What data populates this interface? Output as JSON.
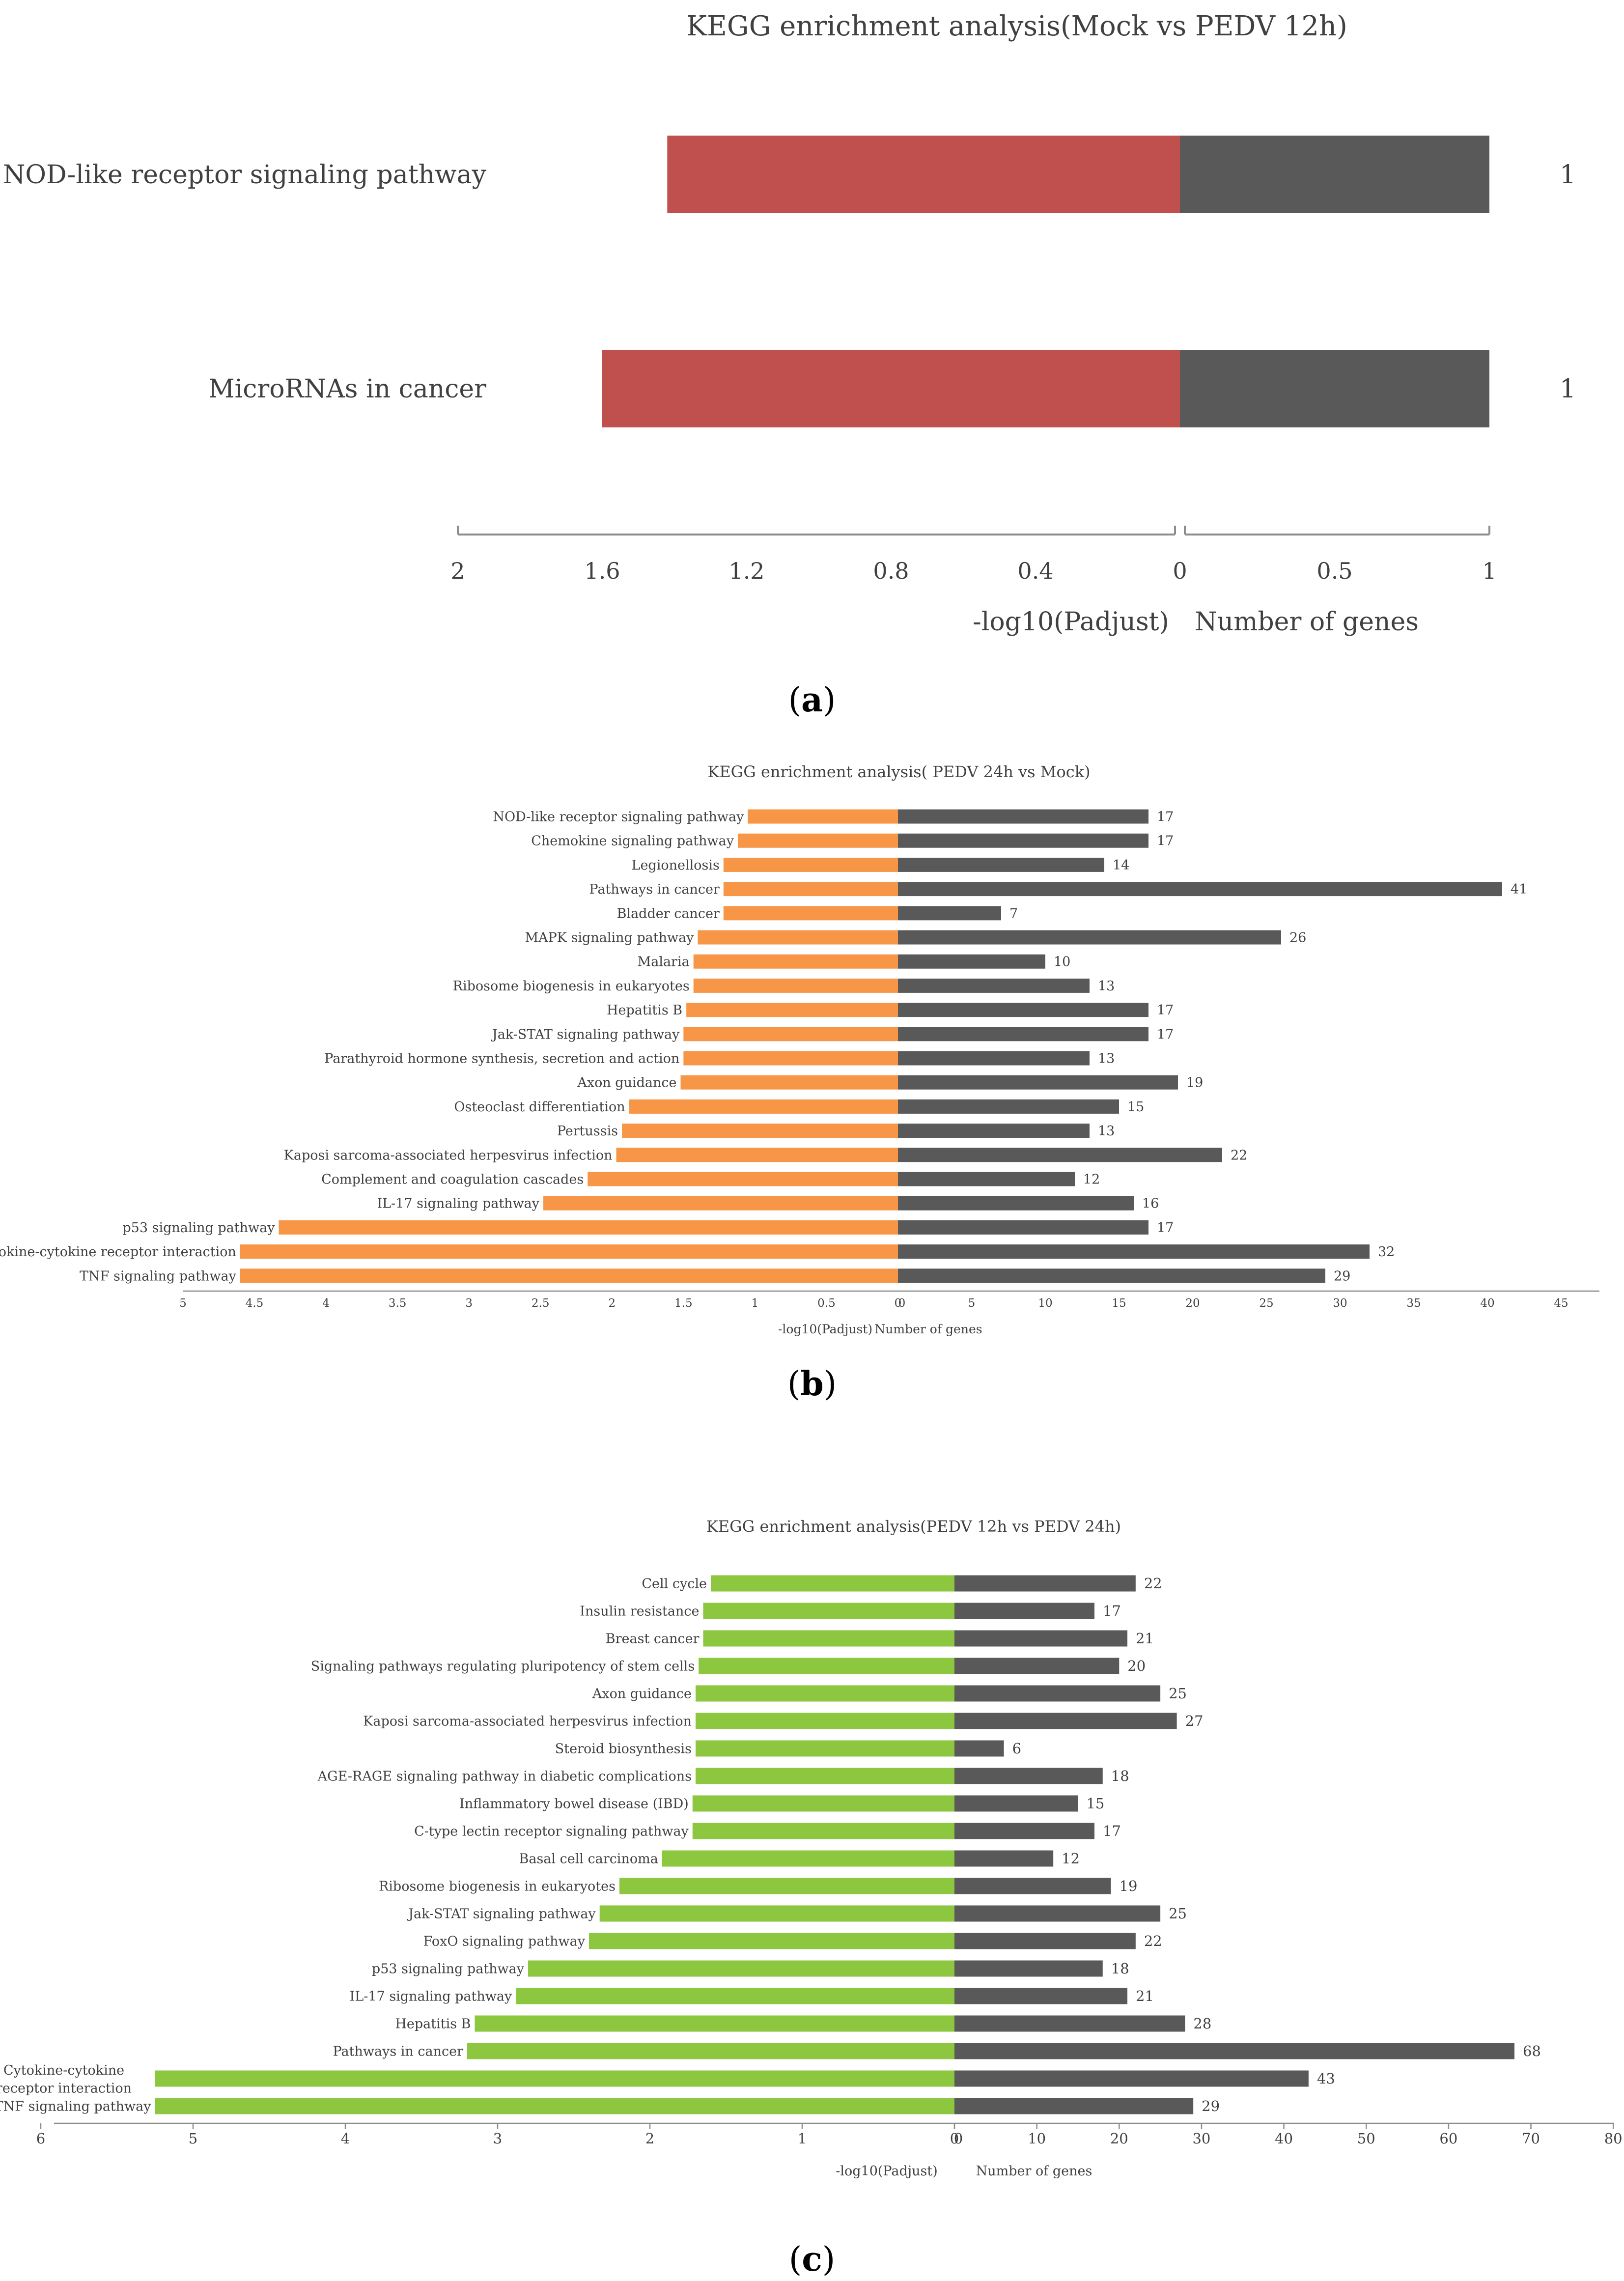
{
  "colors": {
    "dark_bar": "#595959",
    "panel_a_left": "#c0504d",
    "panel_b_left": "#f79646",
    "panel_c_left": "#8dc63f",
    "axis": "#8c8c8c",
    "text": "#404040"
  },
  "chart_data": [
    {
      "type": "bar",
      "panel_label": "a",
      "title": "KEGG enrichment analysis(Mock vs PEDV 12h)",
      "orientation": "horizontal-diverging",
      "left_xlabel": "-log10(Padjust)",
      "right_xlabel": "Number of genes",
      "left_ticks": [
        "2",
        "1.6",
        "1.2",
        "0.8",
        "0.4",
        "0"
      ],
      "right_ticks": [
        "0",
        "0.5",
        "1"
      ],
      "left_xlim": [
        0,
        2
      ],
      "right_xlim": [
        0,
        1
      ],
      "categories": [
        "NOD-like receptor signaling pathway",
        "MicroRNAs in cancer"
      ],
      "series": [
        {
          "name": "-log10(Padjust)",
          "values": [
            1.42,
            1.6
          ]
        },
        {
          "name": "Number of genes",
          "values": [
            1,
            1
          ]
        }
      ],
      "gene_labels": [
        "1",
        "1"
      ]
    },
    {
      "type": "bar",
      "panel_label": "b",
      "title": "KEGG enrichment analysis( PEDV 24h vs Mock)",
      "orientation": "horizontal-diverging",
      "left_xlabel": "-log10(Padjust)",
      "right_xlabel": "Number of genes",
      "left_ticks": [
        "5",
        "4.5",
        "4",
        "3.5",
        "3",
        "2.5",
        "2",
        "1.5",
        "1",
        "0.5",
        "0"
      ],
      "right_ticks": [
        "0",
        "5",
        "10",
        "15",
        "20",
        "25",
        "30",
        "35",
        "40",
        "45"
      ],
      "left_xlim": [
        0,
        5
      ],
      "right_xlim": [
        0,
        45
      ],
      "categories": [
        "NOD-like receptor signaling pathway",
        "Chemokine signaling pathway",
        "Legionellosis",
        "Pathways in cancer",
        "Bladder cancer",
        "MAPK signaling pathway",
        "Malaria",
        "Ribosome biogenesis in eukaryotes",
        "Hepatitis B",
        "Jak-STAT signaling pathway",
        "Parathyroid hormone synthesis, secretion and action",
        "Axon guidance",
        "Osteoclast differentiation",
        "Pertussis",
        "Kaposi sarcoma-associated herpesvirus infection",
        "Complement and coagulation cascades",
        "IL-17 signaling pathway",
        "p53 signaling pathway",
        "Cytokine-cytokine receptor interaction",
        "TNF signaling pathway"
      ],
      "series": [
        {
          "name": "-log10(Padjust)",
          "values": [
            1.05,
            1.12,
            1.22,
            1.22,
            1.22,
            1.4,
            1.43,
            1.43,
            1.48,
            1.5,
            1.5,
            1.52,
            1.88,
            1.93,
            1.97,
            2.17,
            2.48,
            4.33,
            4.6,
            4.6
          ]
        },
        {
          "name": "Number of genes",
          "values": [
            17,
            17,
            14,
            41,
            7,
            26,
            10,
            13,
            17,
            17,
            13,
            19,
            15,
            13,
            22,
            12,
            16,
            17,
            32,
            29
          ]
        }
      ],
      "gene_labels": [
        "17",
        "17",
        "14",
        "41",
        "7",
        "26",
        "10",
        "13",
        "17",
        "17",
        "13",
        "19",
        "15",
        "13",
        "22",
        "12",
        "16",
        "17",
        "32",
        "29"
      ]
    },
    {
      "type": "bar",
      "panel_label": "c",
      "title": "KEGG enrichment analysis(PEDV 12h vs PEDV 24h)",
      "orientation": "horizontal-diverging",
      "left_xlabel": "-log10(Padjust)",
      "right_xlabel": "Number of genes",
      "left_ticks": [
        "6",
        "5",
        "4",
        "3",
        "2",
        "1",
        "0"
      ],
      "right_ticks": [
        "0",
        "10",
        "20",
        "30",
        "40",
        "50",
        "60",
        "70",
        "80"
      ],
      "left_xlim": [
        0,
        6
      ],
      "right_xlim": [
        0,
        80
      ],
      "categories": [
        "Cell cycle",
        "Insulin resistance",
        "Breast cancer",
        "Signaling pathways regulating pluripotency of stem cells",
        "Axon guidance",
        "Kaposi sarcoma-associated herpesvirus infection",
        "Steroid biosynthesis",
        "AGE-RAGE signaling pathway in diabetic complications",
        "Inflammatory bowel disease (IBD)",
        "C-type lectin receptor signaling pathway",
        "Basal cell carcinoma",
        "Ribosome biogenesis in eukaryotes",
        "Jak-STAT signaling pathway",
        "FoxO signaling pathway",
        "p53 signaling pathway",
        "IL-17 signaling pathway",
        "Hepatitis B",
        "Pathways in cancer",
        "Cytokine-cytokine receptor interaction",
        "TNF signaling pathway"
      ],
      "series": [
        {
          "name": "-log10(Padjust)",
          "values": [
            1.6,
            1.65,
            1.65,
            1.68,
            1.7,
            1.7,
            1.7,
            1.7,
            1.72,
            1.72,
            1.92,
            2.2,
            2.33,
            2.4,
            2.8,
            2.88,
            3.15,
            3.2,
            5.25,
            5.25
          ]
        },
        {
          "name": "Number of genes",
          "values": [
            22,
            17,
            21,
            20,
            25,
            27,
            6,
            18,
            15,
            17,
            12,
            19,
            25,
            22,
            18,
            21,
            28,
            68,
            43,
            29
          ]
        }
      ],
      "gene_labels": [
        "22",
        "17",
        "21",
        "20",
        "25",
        "27",
        "6",
        "18",
        "15",
        "17",
        "12",
        "19",
        "25",
        "22",
        "18",
        "21",
        "28",
        "68",
        "43",
        "29"
      ]
    }
  ]
}
